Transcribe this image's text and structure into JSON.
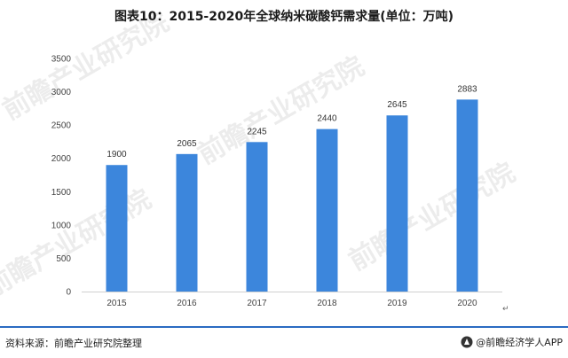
{
  "title": "图表10：2015-2020年全球纳米碳酸钙需求量(单位：万吨)",
  "footer": {
    "source": "资料来源：前瞻产业研究院整理",
    "brand": "@前瞻经济学人APP"
  },
  "watermark": {
    "text": "前瞻产业研究院"
  },
  "chart_data": {
    "type": "bar",
    "categories": [
      "2015",
      "2016",
      "2017",
      "2018",
      "2019",
      "2020"
    ],
    "values": [
      1900,
      2065,
      2245,
      2440,
      2645,
      2883
    ],
    "yticks": [
      "0",
      "500",
      "1000",
      "1500",
      "2000",
      "2500",
      "3000",
      "3500"
    ],
    "ylim": [
      0,
      3500
    ],
    "grid": false,
    "legend": "none",
    "bar_color": "#3c86dc",
    "title": "图表10：2015-2020年全球纳米碳酸钙需求量(单位：万吨)"
  }
}
